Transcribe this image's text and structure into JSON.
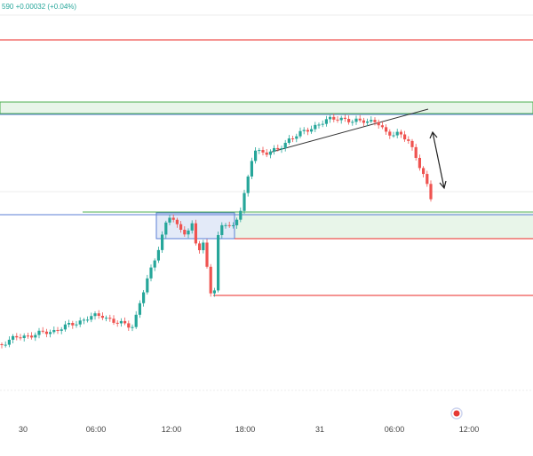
{
  "header": {
    "quote_text": "590 +0.00032 (+0.04%)"
  },
  "chart_data": {
    "type": "candlestick",
    "x_tick_labels": [
      "30",
      "06:00",
      "12:00",
      "18:00",
      "31",
      "06:00",
      "12:00"
    ],
    "grid": "horizontal only",
    "colors": {
      "up": "#26a69a",
      "down": "#ef5350",
      "resistance_line": "#ef5350",
      "support_zone": "#4caf50",
      "blue_line": "#5b7fd6",
      "trendline": "#333333",
      "background": "#ffffff"
    },
    "annotations": [
      {
        "kind": "horizontal-line",
        "color": "red",
        "level": "upper resistance"
      },
      {
        "kind": "zone",
        "color": "green",
        "level": "upper supply zone"
      },
      {
        "kind": "zone",
        "color": "green",
        "level": "middle support zone"
      },
      {
        "kind": "horizontal-line",
        "color": "blue",
        "level": "middle level"
      },
      {
        "kind": "horizontal-line",
        "color": "red",
        "level": "lower stop 1"
      },
      {
        "kind": "horizontal-line",
        "color": "red",
        "level": "lower stop 2"
      },
      {
        "kind": "trendline",
        "color": "black",
        "level": "rising wedge top"
      },
      {
        "kind": "double-arrow",
        "color": "black",
        "level": "drop measurement"
      },
      {
        "kind": "marker",
        "color": "red",
        "level": "current time"
      }
    ]
  }
}
